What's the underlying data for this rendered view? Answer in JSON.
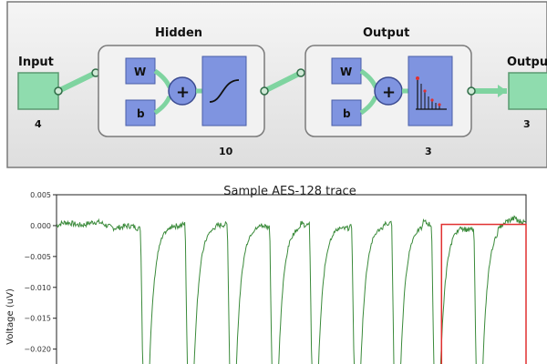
{
  "network": {
    "input": {
      "label": "Input",
      "size": "4"
    },
    "hidden": {
      "label": "Hidden",
      "size": "10",
      "weight_label": "W",
      "bias_label": "b",
      "sum_symbol": "+"
    },
    "output_layer": {
      "label": "Output",
      "size": "3",
      "weight_label": "W",
      "bias_label": "b",
      "sum_symbol": "+"
    },
    "output": {
      "label": "Output",
      "size": "3"
    }
  },
  "chart_data": {
    "type": "line",
    "title": "Sample AES-128 trace",
    "ylabel": "Voltage (uV)",
    "xlabel": "",
    "ylim": [
      -0.023,
      0.005
    ],
    "yticks": [
      0.005,
      0.0,
      -0.005,
      -0.01,
      -0.015,
      -0.02
    ],
    "ytick_labels": [
      "0.005",
      "0.000",
      "−0.005",
      "−0.010",
      "−0.015",
      "−0.020"
    ],
    "xlim": [
      0,
      1000
    ],
    "grid": false,
    "series": [
      {
        "color": "#3a8a3a",
        "baseline": 0.0,
        "dip_positions": [
          185,
          280,
          370,
          460,
          545,
          635,
          720,
          805,
          895
        ],
        "dip_bottom": -0.03
      }
    ],
    "highlight_box": {
      "color": "#e03030",
      "x_range": [
        820,
        1000
      ],
      "y_range": [
        -0.03,
        0.0002
      ]
    }
  }
}
